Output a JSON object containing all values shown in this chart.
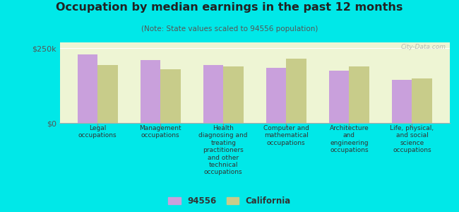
{
  "title": "Occupation by median earnings in the past 12 months",
  "subtitle": "(Note: State values scaled to 94556 population)",
  "background_color": "#00e8e8",
  "plot_bg_color": "#eef5d4",
  "categories": [
    "Legal\noccupations",
    "Management\noccupations",
    "Health\ndiagnosing and\ntreating\npractitioners\nand other\ntechnical\noccupations",
    "Computer and\nmathematical\noccupations",
    "Architecture\nand\nengineering\noccupations",
    "Life, physical,\nand social\nscience\noccupations"
  ],
  "values_94556": [
    230000,
    210000,
    195000,
    185000,
    175000,
    145000
  ],
  "values_california": [
    195000,
    180000,
    190000,
    215000,
    190000,
    150000
  ],
  "color_94556": "#c9a0dc",
  "color_california": "#c8cc8a",
  "ylim": [
    0,
    270000
  ],
  "yticks": [
    0,
    250000
  ],
  "ytick_labels": [
    "$0",
    "$250k"
  ],
  "legend_94556": "94556",
  "legend_california": "California",
  "watermark": "City-Data.com"
}
